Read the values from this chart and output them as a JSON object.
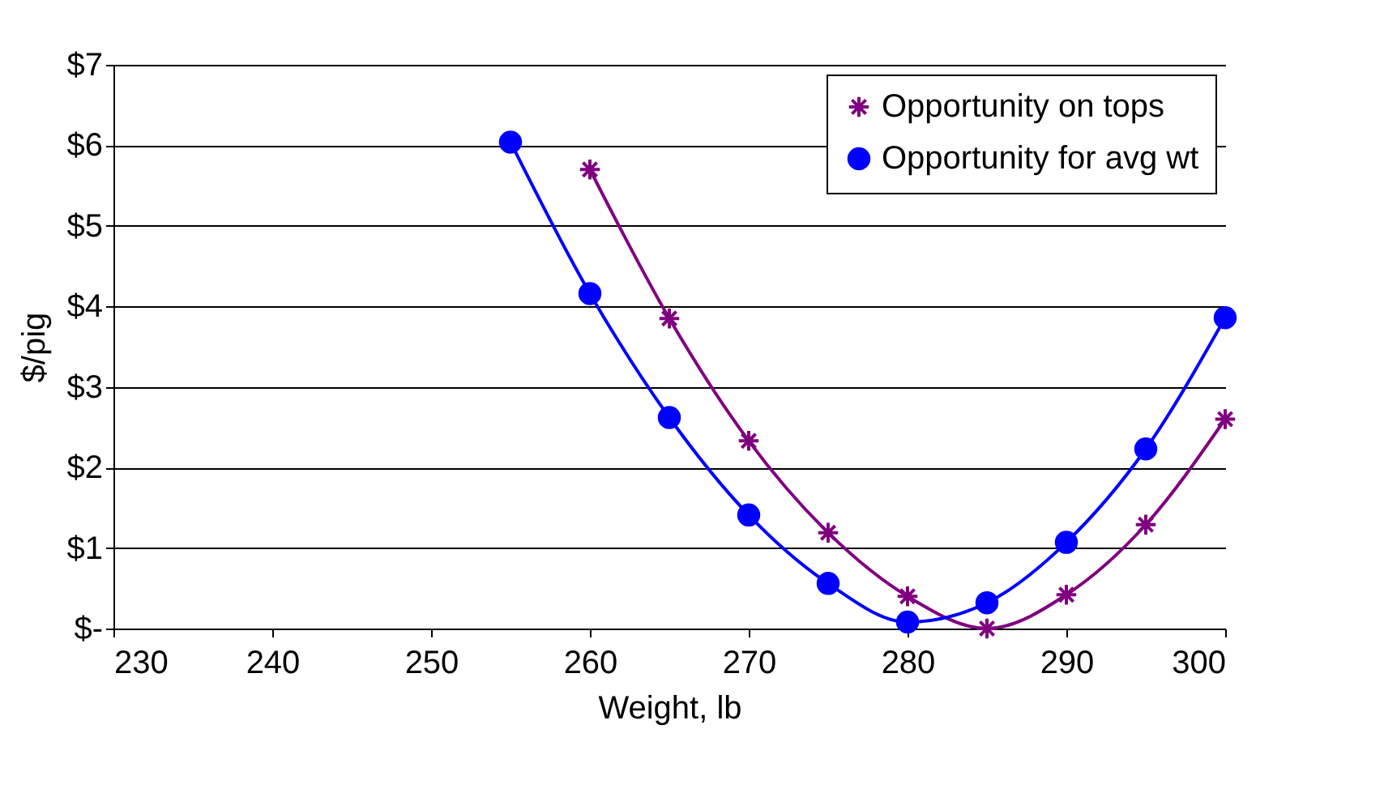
{
  "chart_data": {
    "type": "line",
    "xlabel": "Weight, lb",
    "ylabel": "$/pig",
    "x": [
      255,
      260,
      265,
      270,
      275,
      280,
      285,
      290,
      295,
      300
    ],
    "series": [
      {
        "name": "Opportunity on tops",
        "color": "#800080",
        "marker": "cross",
        "values": [
          null,
          5.7,
          3.85,
          2.33,
          1.19,
          0.4,
          0,
          0.42,
          1.29,
          2.6
        ]
      },
      {
        "name": "Opportunity for avg wt",
        "color": "#0000ff",
        "marker": "circle",
        "values": [
          6.04,
          4.16,
          2.62,
          1.41,
          0.56,
          0.08,
          0.32,
          1.07,
          2.23,
          3.86
        ]
      }
    ],
    "xlim": [
      230,
      300
    ],
    "xticks": [
      230,
      240,
      250,
      260,
      270,
      280,
      290,
      300
    ],
    "ylim": [
      0,
      7
    ],
    "yticks": [
      {
        "value": 0,
        "label": "$-"
      },
      {
        "value": 1,
        "label": "$1"
      },
      {
        "value": 2,
        "label": "$2"
      },
      {
        "value": 3,
        "label": "$3"
      },
      {
        "value": 4,
        "label": "$4"
      },
      {
        "value": 5,
        "label": "$5"
      },
      {
        "value": 6,
        "label": "$6"
      },
      {
        "value": 7,
        "label": "$7"
      }
    ],
    "grid": "y",
    "legend": "top right"
  }
}
